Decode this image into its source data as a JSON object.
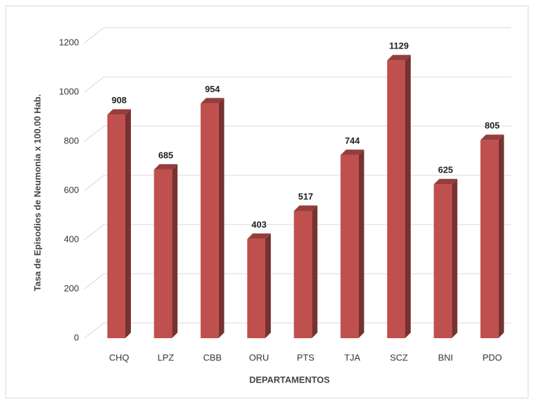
{
  "chart_data": {
    "type": "bar",
    "x_label": "DEPARTAMENTOS",
    "y_label": "Tasa de Episodios de  Neumonia x 100.00 Hab.",
    "categories": [
      "CHQ",
      "LPZ",
      "CBB",
      "ORU",
      "PTS",
      "TJA",
      "SCZ",
      "BNI",
      "PDO"
    ],
    "values": [
      908,
      685,
      954,
      403,
      517,
      744,
      1129,
      625,
      805
    ],
    "color": "#c0504d",
    "ylim": [
      0,
      1200
    ],
    "yticks": [
      0,
      200,
      400,
      600,
      800,
      1000,
      1200
    ],
    "grid": true
  }
}
